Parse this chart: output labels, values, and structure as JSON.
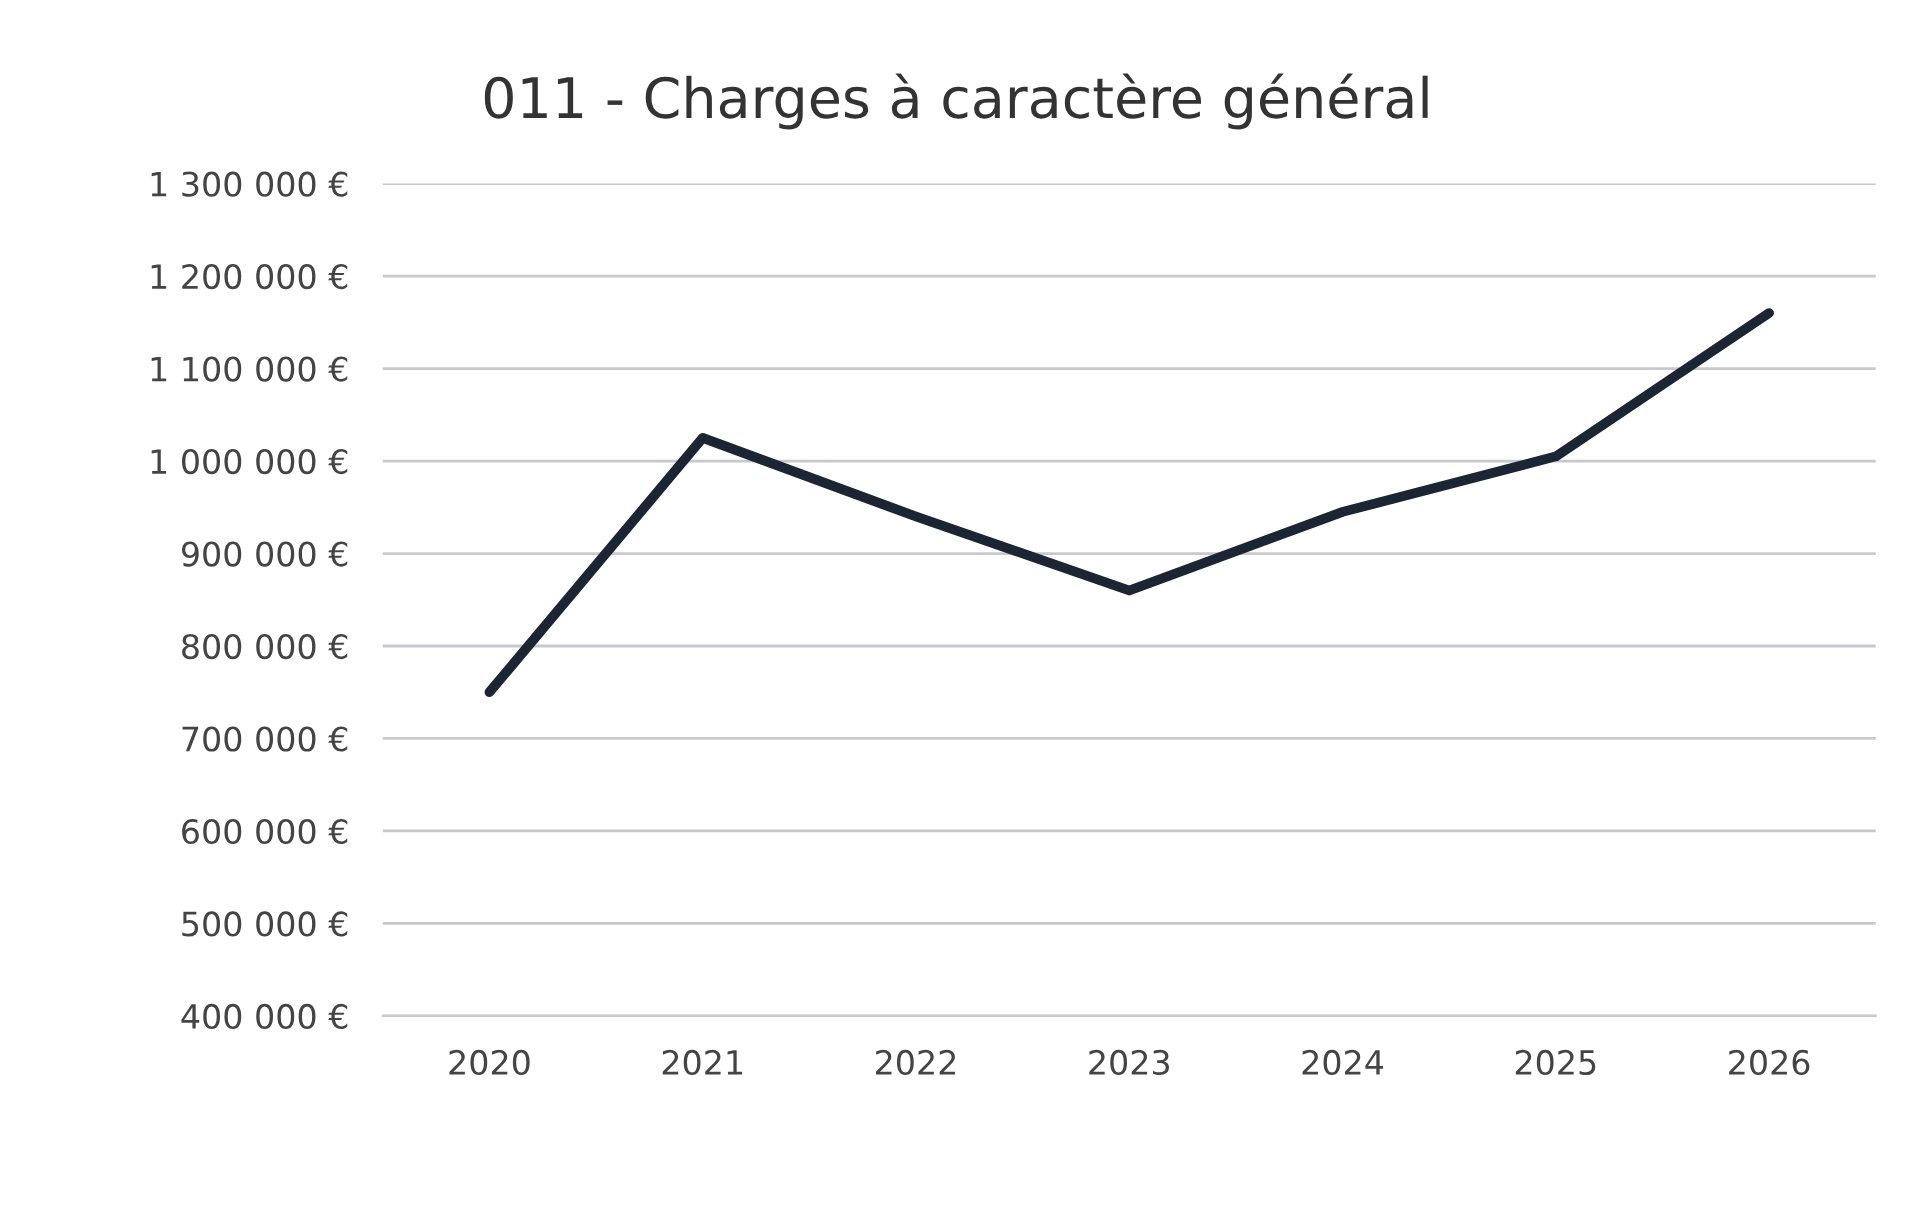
{
  "chart_data": {
    "type": "line",
    "title": "011 - Charges à caractère général",
    "categories": [
      "2020",
      "2021",
      "2022",
      "2023",
      "2024",
      "2025",
      "2026"
    ],
    "series": [
      {
        "color": "#1c2533",
        "values": [
          750000,
          1025000,
          940000,
          860000,
          945000,
          1005000,
          1160000
        ]
      }
    ],
    "ylim": [
      400000,
      1300000
    ],
    "yticks": [
      {
        "value": 400000,
        "label": "400 000 €"
      },
      {
        "value": 500000,
        "label": "500 000 €"
      },
      {
        "value": 600000,
        "label": "600 000 €"
      },
      {
        "value": 700000,
        "label": "700 000 €"
      },
      {
        "value": 800000,
        "label": "800 000 €"
      },
      {
        "value": 900000,
        "label": "900 000 €"
      },
      {
        "value": 1000000,
        "label": "1 000 000 €"
      },
      {
        "value": 1100000,
        "label": "1 100 000 €"
      },
      {
        "value": 1200000,
        "label": "1 200 000 €"
      },
      {
        "value": 1300000,
        "label": "1 300 000 €"
      }
    ],
    "grid": "y",
    "marker": "none",
    "line_style": "solid"
  }
}
